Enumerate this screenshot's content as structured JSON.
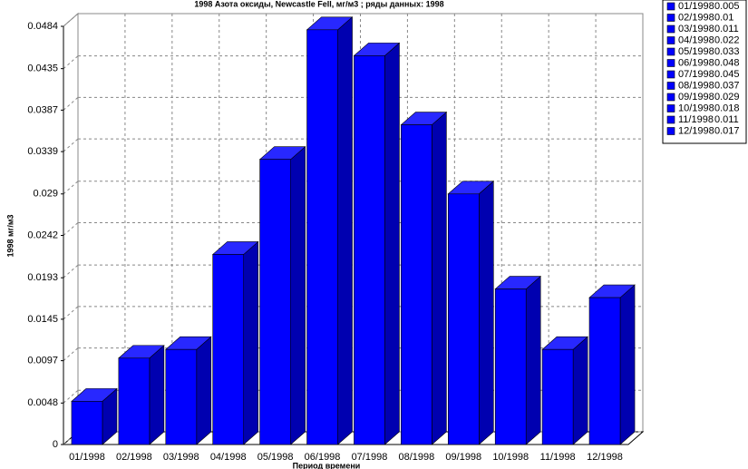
{
  "chart_data": {
    "type": "bar3d",
    "title": "1998 Азота оксиды, Newcastle Fell,  мг/м3 ; ряды данных: 1998",
    "y_label": "1998 мг/м3",
    "x_label": "Период времени",
    "categories": [
      "01/1998",
      "02/1998",
      "03/1998",
      "04/1998",
      "05/1998",
      "06/1998",
      "07/1998",
      "08/1998",
      "09/1998",
      "10/1998",
      "11/1998",
      "12/1998"
    ],
    "values": [
      0.005,
      0.01,
      0.011,
      0.022,
      0.033,
      0.048,
      0.045,
      0.037,
      0.029,
      0.018,
      0.011,
      0.017
    ],
    "color": "#0000ff",
    "ylim": [
      0,
      0.0484
    ],
    "yticks": [
      0,
      0.0048,
      0.0097,
      0.0145,
      0.0193,
      0.0242,
      0.029,
      0.0339,
      0.0387,
      0.0435,
      0.0484
    ],
    "grid": true
  }
}
